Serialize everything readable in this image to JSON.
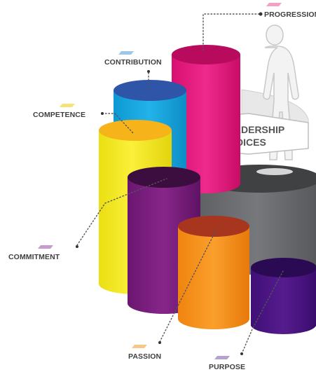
{
  "diagram": {
    "centerpiece": {
      "line1": "LEADERSHIP",
      "line2": "CHOICES"
    },
    "labels": {
      "progression": "PROGRESSION",
      "contribution": "CONTRIBUTION",
      "competence": "COMPETENCE",
      "commitment": "COMMITMENT",
      "passion": "PASSION",
      "purpose": "PURPOSE"
    },
    "colors": {
      "progression": "#e6177f",
      "contribution": "#1aa8e0",
      "competence": "#f5e81c",
      "commitment": "#7a1f7c",
      "passion": "#f7941d",
      "purpose": "#4b1782",
      "base": "#6d6e71",
      "tag_pink": "#f2a1c4",
      "tag_blue": "#9dc7e8",
      "tag_yellow": "#f7e27a",
      "tag_lilac": "#c79ad0",
      "tag_orange": "#f9c68a",
      "tag_purple": "#b6a0cf"
    },
    "icons": [
      "person-silhouette-icon",
      "color-tag-icon"
    ]
  }
}
